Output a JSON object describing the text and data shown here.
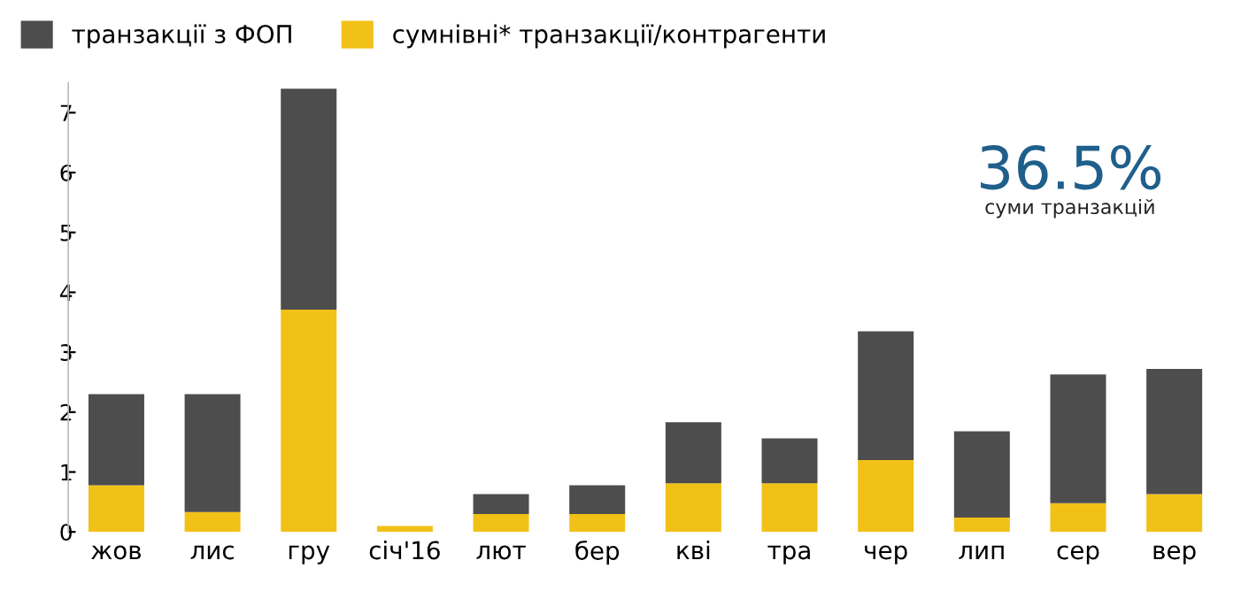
{
  "chart_data": {
    "type": "bar",
    "stacked": true,
    "categories": [
      "жов",
      "лис",
      "гру",
      "січ'16",
      "лют",
      "бер",
      "кві",
      "тра",
      "чер",
      "лип",
      "сер",
      "вер"
    ],
    "series": [
      {
        "name": "сумнівні* транзакції/контрагенти",
        "color": "#f2c118",
        "values": [
          0.78,
          0.33,
          3.71,
          0.1,
          0.3,
          0.3,
          0.81,
          0.81,
          1.2,
          0.24,
          0.48,
          0.63
        ]
      },
      {
        "name": "транзакції з ФОП",
        "color": "#4d4d4d",
        "values": [
          1.52,
          1.97,
          3.69,
          0,
          0.33,
          0.48,
          1.02,
          0.75,
          2.15,
          1.44,
          2.15,
          2.09
        ]
      }
    ],
    "ylim": [
      0,
      7.5
    ],
    "yticks": [
      0,
      1,
      2,
      3,
      4,
      5,
      6,
      7
    ],
    "grid": false,
    "legend": "top left",
    "annotations": [
      "36.5%",
      "суми транзакцій"
    ]
  }
}
